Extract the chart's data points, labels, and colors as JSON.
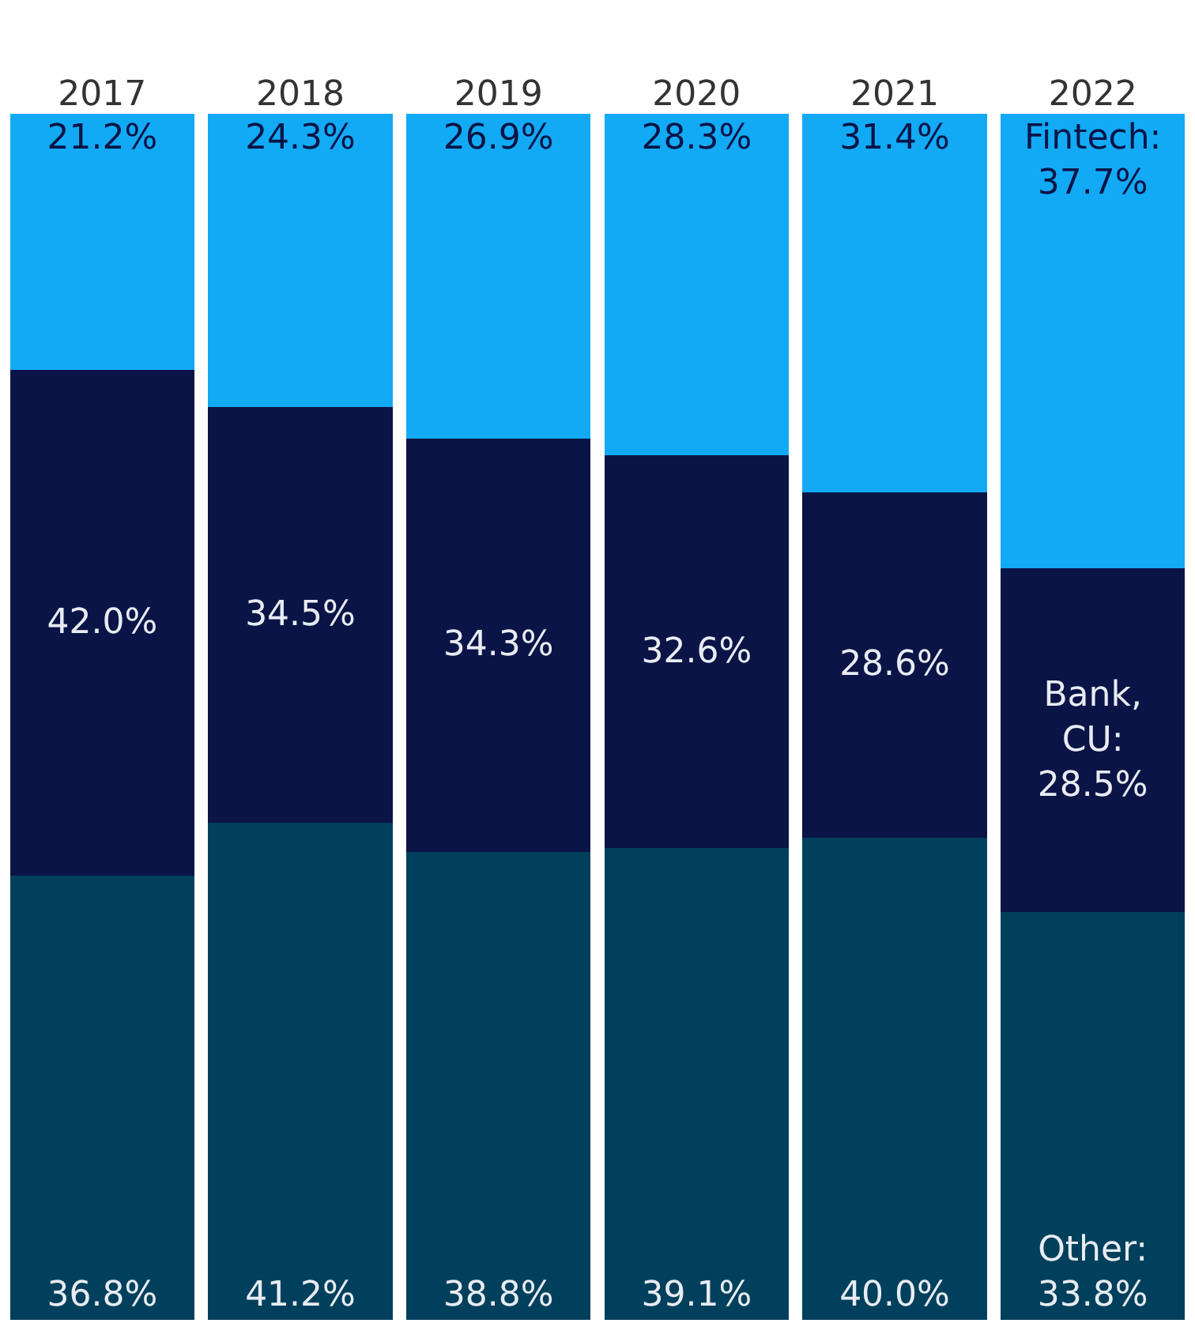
{
  "chart_data": {
    "type": "bar",
    "stacked": true,
    "categories": [
      "2017",
      "2018",
      "2019",
      "2020",
      "2021",
      "2022"
    ],
    "series": [
      {
        "color": "#00405c",
        "values": [
          36.8,
          41.2,
          38.8,
          39.1,
          40.0,
          33.8
        ],
        "value_labels": [
          "36.8%",
          "41.2%",
          "38.8%",
          "39.1%",
          "40.0%",
          "Other:\n33.8%"
        ]
      },
      {
        "color": "#0b1446",
        "values": [
          42.0,
          34.5,
          34.3,
          32.6,
          28.6,
          28.5
        ],
        "value_labels": [
          "42.0%",
          "34.5%",
          "34.3%",
          "32.6%",
          "28.6%",
          "Bank,\nCU:\n28.5%"
        ]
      },
      {
        "color": "#12aaf5",
        "values": [
          21.2,
          24.3,
          26.9,
          28.3,
          31.4,
          37.7
        ],
        "value_labels": [
          "21.2%",
          "24.3%",
          "26.9%",
          "28.3%",
          "31.4%",
          "Fintech:\n37.7%"
        ]
      }
    ],
    "tick_labels": "x"
  }
}
